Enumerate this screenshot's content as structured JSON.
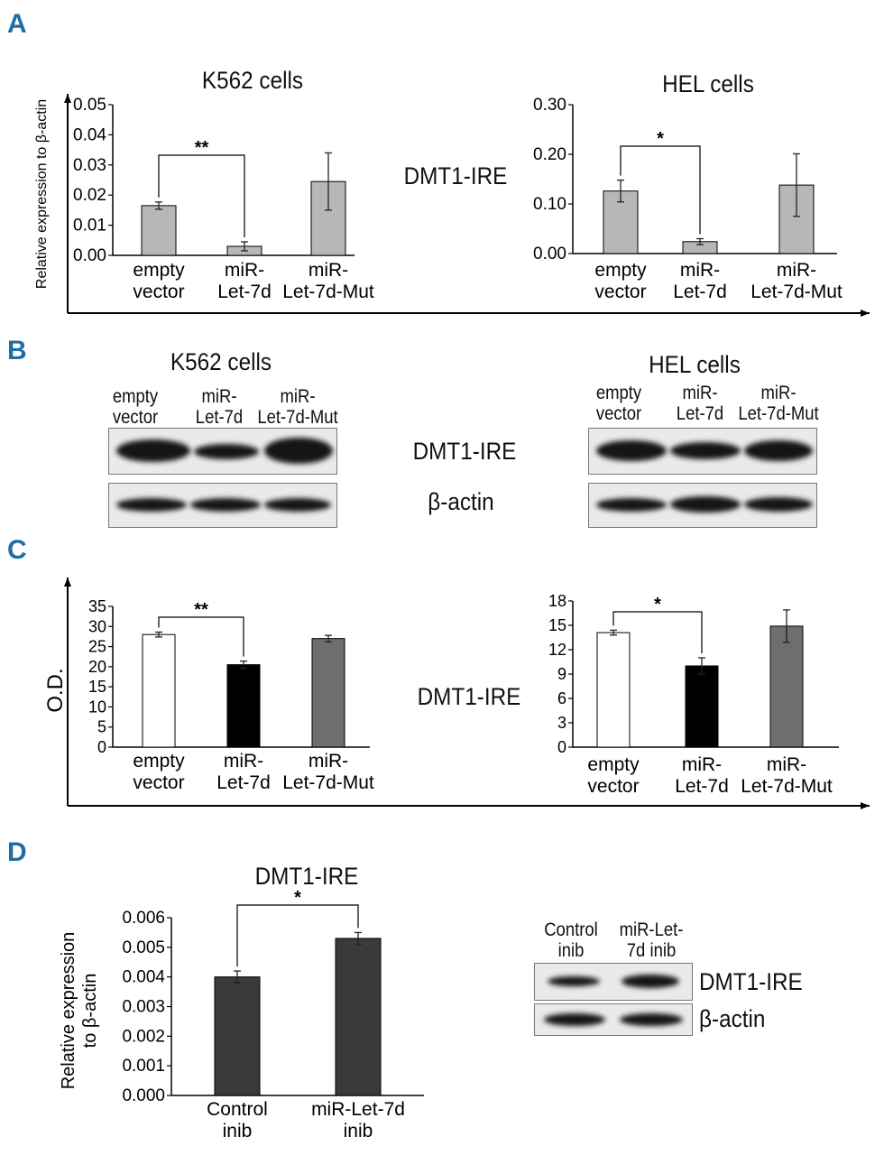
{
  "panels": {
    "A": {
      "label": "A",
      "middle_label": "DMT1-IRE",
      "ylabel": "Relative expression to β-actin",
      "charts": [
        {
          "title": "K562 cells",
          "ticks": [
            "0.05",
            "0.04",
            "0.03",
            "0.02",
            "0.01",
            "0.00"
          ],
          "significance": "**",
          "categories": [
            [
              "empty",
              "vector"
            ],
            [
              "miR-",
              "Let-7d"
            ],
            [
              "miR-",
              "Let-7d-Mut"
            ]
          ]
        },
        {
          "title": "HEL cells",
          "ticks": [
            "0.30",
            "0.20",
            "0.10",
            "0.00"
          ],
          "significance": "*",
          "categories": [
            [
              "empty",
              "vector"
            ],
            [
              "miR-",
              "Let-7d"
            ],
            [
              "miR-",
              "Let-7d-Mut"
            ]
          ]
        }
      ]
    },
    "B": {
      "label": "B",
      "blots": [
        {
          "title": "K562 cells",
          "lanes": [
            [
              "empty",
              "vector"
            ],
            [
              "miR-",
              "Let-7d"
            ],
            [
              "miR-",
              "Let-7d-Mut"
            ]
          ]
        },
        {
          "title": "HEL cells",
          "lanes": [
            [
              "empty",
              "vector"
            ],
            [
              "miR-",
              "Let-7d"
            ],
            [
              "miR-",
              "Let-7d-Mut"
            ]
          ]
        }
      ],
      "row_labels": [
        "DMT1-IRE",
        "β-actin"
      ]
    },
    "C": {
      "label": "C",
      "middle_label": "DMT1-IRE",
      "ylabel": "O.D.",
      "charts": [
        {
          "ticks": [
            "35",
            "30",
            "25",
            "20",
            "15",
            "10",
            "5",
            "0"
          ],
          "significance": "**",
          "categories": [
            [
              "empty",
              "vector"
            ],
            [
              "miR-",
              "Let-7d"
            ],
            [
              "miR-",
              "Let-7d-Mut"
            ]
          ]
        },
        {
          "ticks": [
            "18",
            "15",
            "12",
            "9",
            "6",
            "3",
            "0"
          ],
          "significance": "*",
          "categories": [
            [
              "empty",
              "vector"
            ],
            [
              "miR-",
              "Let-7d"
            ],
            [
              "miR-",
              "Let-7d-Mut"
            ]
          ]
        }
      ]
    },
    "D": {
      "label": "D",
      "chart": {
        "title": "DMT1-IRE",
        "ylabel": [
          "Relative expression",
          "to β-actin"
        ],
        "ticks": [
          "0.006",
          "0.005",
          "0.004",
          "0.003",
          "0.002",
          "0.001",
          "0.000"
        ],
        "significance": "*",
        "categories": [
          [
            "Control",
            "inib"
          ],
          [
            "miR-Let-7d",
            "inib"
          ]
        ]
      },
      "blot": {
        "lanes": [
          [
            "Control",
            "inib"
          ],
          [
            "miR-Let-",
            "7d inib"
          ]
        ],
        "row_labels": [
          "DMT1-IRE",
          "β-actin"
        ]
      }
    }
  },
  "chart_data": [
    {
      "type": "bar",
      "panel": "A",
      "title": "K562 cells",
      "ylabel": "Relative expression to β-actin",
      "categories": [
        "empty vector",
        "miR-Let-7d",
        "miR-Let-7d-Mut"
      ],
      "values": [
        0.0165,
        0.003,
        0.0245
      ],
      "errors": [
        0.0012,
        0.0015,
        0.0095
      ],
      "ylim": [
        0,
        0.05
      ],
      "colors": [
        "#b7b7b7",
        "#b7b7b7",
        "#b7b7b7"
      ],
      "significance": {
        "pair": [
          0,
          1
        ],
        "label": "**"
      }
    },
    {
      "type": "bar",
      "panel": "A",
      "title": "HEL cells",
      "categories": [
        "empty vector",
        "miR-Let-7d",
        "miR-Let-7d-Mut"
      ],
      "values": [
        0.126,
        0.024,
        0.138
      ],
      "errors": [
        0.022,
        0.006,
        0.063
      ],
      "ylim": [
        0,
        0.3
      ],
      "colors": [
        "#b7b7b7",
        "#b7b7b7",
        "#b7b7b7"
      ],
      "significance": {
        "pair": [
          0,
          1
        ],
        "label": "*"
      }
    },
    {
      "type": "bar",
      "panel": "C",
      "ylabel": "O.D.",
      "categories": [
        "empty vector",
        "miR-Let-7d",
        "miR-Let-7d-Mut"
      ],
      "values": [
        28,
        20.5,
        27
      ],
      "errors": [
        0.6,
        0.9,
        0.8
      ],
      "ylim": [
        0,
        35
      ],
      "colors": [
        "#ffffff",
        "#000000",
        "#6e6e6e"
      ],
      "significance": {
        "pair": [
          0,
          1
        ],
        "label": "**"
      }
    },
    {
      "type": "bar",
      "panel": "C",
      "categories": [
        "empty vector",
        "miR-Let-7d",
        "miR-Let-7d-Mut"
      ],
      "values": [
        14.1,
        10,
        14.9
      ],
      "errors": [
        0.3,
        1,
        2
      ],
      "ylim": [
        0,
        18
      ],
      "colors": [
        "#ffffff",
        "#000000",
        "#6e6e6e"
      ],
      "significance": {
        "pair": [
          0,
          1
        ],
        "label": "*"
      }
    },
    {
      "type": "bar",
      "panel": "D",
      "title": "DMT1-IRE",
      "ylabel": "Relative expression to β-actin",
      "categories": [
        "Control inib",
        "miR-Let-7d inib"
      ],
      "values": [
        0.004,
        0.0053
      ],
      "errors": [
        0.0002,
        0.0002
      ],
      "ylim": [
        0,
        0.006
      ],
      "colors": [
        "#3a3a3a",
        "#3a3a3a"
      ],
      "significance": {
        "pair": [
          0,
          1
        ],
        "label": "*"
      }
    }
  ]
}
